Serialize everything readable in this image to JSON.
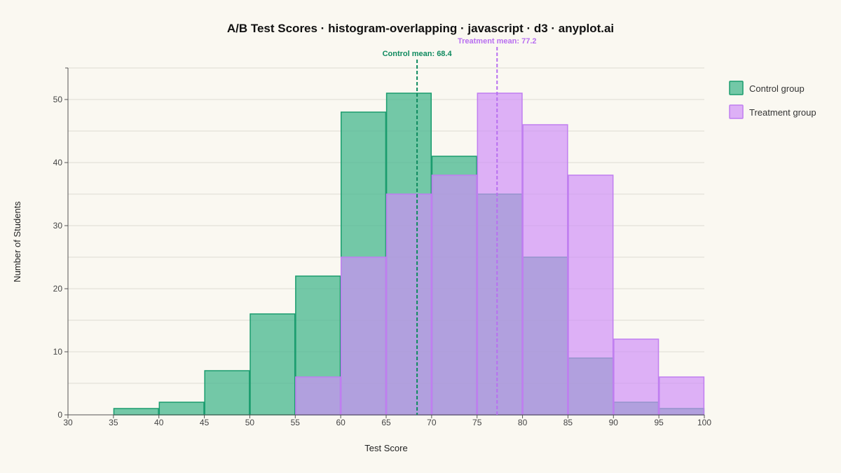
{
  "chart_data": {
    "type": "histogram",
    "title": "A/B Test Scores · histogram-overlapping · javascript · d3 · anyplot.ai",
    "xlabel": "Test Score",
    "ylabel": "Number of Students",
    "xlim": [
      30,
      100
    ],
    "ylim": [
      0,
      55
    ],
    "x_ticks": [
      30,
      35,
      40,
      45,
      50,
      55,
      60,
      65,
      70,
      75,
      80,
      85,
      90,
      95,
      100
    ],
    "y_ticks": [
      0,
      10,
      20,
      30,
      40,
      50
    ],
    "grid": true,
    "legend_position": "right",
    "bin_edges": [
      35,
      40,
      45,
      50,
      55,
      60,
      65,
      70,
      75,
      80,
      85,
      90,
      95,
      100
    ],
    "series": [
      {
        "name": "Control group",
        "color": "#1a9c6e",
        "fill": "#4dba92",
        "values": [
          1,
          2,
          7,
          16,
          22,
          48,
          51,
          41,
          35,
          25,
          9,
          2,
          1
        ]
      },
      {
        "name": "Treatment group",
        "color": "#c07ef0",
        "fill": "#cf8ef7",
        "values": [
          0,
          0,
          0,
          0,
          6,
          25,
          35,
          38,
          51,
          46,
          38,
          12,
          6
        ]
      }
    ],
    "means": [
      {
        "label": "Control mean: 68.4",
        "value": 68.4,
        "color": "#0f8a5f"
      },
      {
        "label": "Treatment mean: 77.2",
        "value": 77.2,
        "color": "#b86ff0"
      }
    ]
  }
}
